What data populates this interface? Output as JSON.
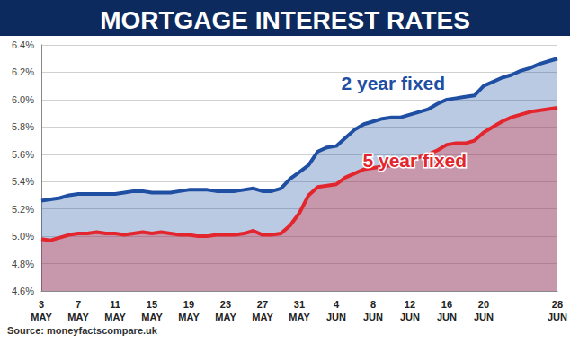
{
  "chart_data": {
    "type": "area",
    "title": "MORTGAGE INTEREST RATES",
    "source": "Source: moneyfactscompare.uk",
    "categories": [
      "3\nMAY",
      null,
      null,
      null,
      "7\nMAY",
      null,
      null,
      null,
      "11\nMAY",
      null,
      null,
      null,
      "15\nMAY",
      null,
      null,
      null,
      "19\nMAY",
      null,
      null,
      null,
      "23\nMAY",
      null,
      null,
      null,
      "27\nMAY",
      null,
      null,
      null,
      "31\nMAY",
      null,
      null,
      null,
      "4\nJUN",
      null,
      null,
      null,
      "8\nJUN",
      null,
      null,
      null,
      "12\nJUN",
      null,
      null,
      null,
      "16\nJUN",
      null,
      null,
      null,
      "20\nJUN",
      null,
      null,
      null,
      null,
      null,
      null,
      null,
      "28\nJUN"
    ],
    "series": [
      {
        "name": "2 year fixed",
        "color": "#1f4fa3",
        "values": [
          5.26,
          5.27,
          5.28,
          5.3,
          5.31,
          5.31,
          5.31,
          5.31,
          5.31,
          5.32,
          5.33,
          5.33,
          5.32,
          5.32,
          5.32,
          5.33,
          5.34,
          5.34,
          5.34,
          5.33,
          5.33,
          5.33,
          5.34,
          5.35,
          5.33,
          5.33,
          5.35,
          5.42,
          5.47,
          5.52,
          5.62,
          5.65,
          5.66,
          5.72,
          5.78,
          5.82,
          5.84,
          5.86,
          5.87,
          5.87,
          5.89,
          5.91,
          5.93,
          5.97,
          6.0,
          6.01,
          6.02,
          6.03,
          6.1,
          6.13,
          6.16,
          6.18,
          6.21,
          6.23,
          6.26,
          6.28,
          6.3
        ]
      },
      {
        "name": "5 year fixed",
        "color": "#e3262d",
        "values": [
          4.98,
          4.97,
          4.99,
          5.01,
          5.02,
          5.02,
          5.03,
          5.02,
          5.02,
          5.01,
          5.02,
          5.03,
          5.02,
          5.03,
          5.02,
          5.01,
          5.01,
          5.0,
          5.0,
          5.01,
          5.01,
          5.01,
          5.02,
          5.04,
          5.01,
          5.01,
          5.02,
          5.08,
          5.17,
          5.3,
          5.36,
          5.37,
          5.38,
          5.43,
          5.46,
          5.49,
          5.5,
          5.51,
          5.52,
          5.54,
          5.56,
          5.58,
          5.6,
          5.63,
          5.67,
          5.68,
          5.68,
          5.7,
          5.76,
          5.8,
          5.84,
          5.87,
          5.89,
          5.91,
          5.92,
          5.93,
          5.94
        ]
      }
    ],
    "ylim": [
      4.6,
      6.4
    ],
    "yticks": [
      {
        "value": 4.6,
        "label": "4.6%"
      },
      {
        "value": 4.8,
        "label": "4.8%"
      },
      {
        "value": 5.0,
        "label": "5.0%"
      },
      {
        "value": 5.2,
        "label": "5.2%"
      },
      {
        "value": 5.4,
        "label": "5.4%"
      },
      {
        "value": 5.6,
        "label": "5.6%"
      },
      {
        "value": 5.8,
        "label": "5.8%"
      },
      {
        "value": 6.0,
        "label": "6.0%"
      },
      {
        "value": 6.2,
        "label": "6.2%"
      },
      {
        "value": 6.4,
        "label": "6.4%"
      }
    ],
    "grid": true
  }
}
